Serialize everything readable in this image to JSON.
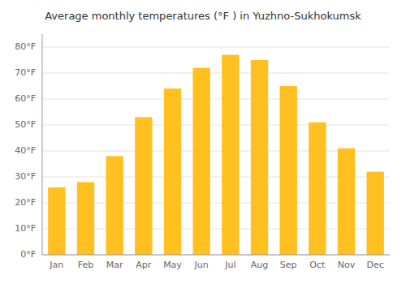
{
  "chart_data": {
    "type": "bar",
    "title": "Average monthly temperatures (°F ) in Yuzhno-Sukhokumsk",
    "categories": [
      "Jan",
      "Feb",
      "Mar",
      "Apr",
      "May",
      "Jun",
      "Jul",
      "Aug",
      "Sep",
      "Oct",
      "Nov",
      "Dec"
    ],
    "values": [
      26,
      28,
      38,
      53,
      64,
      72,
      77,
      75,
      65,
      51,
      41,
      32
    ],
    "color": "#FFC020",
    "ylim": [
      0,
      85
    ],
    "yticks": [
      {
        "value": 0,
        "label": "0°F"
      },
      {
        "value": 10,
        "label": "10°F"
      },
      {
        "value": 20,
        "label": "20°F"
      },
      {
        "value": 30,
        "label": "30°F"
      },
      {
        "value": 40,
        "label": "40°F"
      },
      {
        "value": 50,
        "label": "50°F"
      },
      {
        "value": 60,
        "label": "60°F"
      },
      {
        "value": 70,
        "label": "70°F"
      },
      {
        "value": 80,
        "label": "80°F"
      }
    ],
    "grid": true
  }
}
